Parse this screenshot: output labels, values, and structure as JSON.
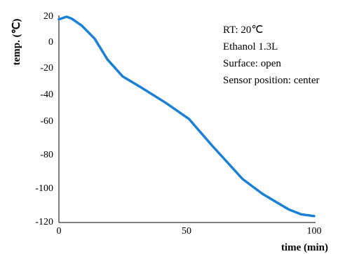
{
  "chart_data": {
    "type": "line",
    "title": "",
    "xlabel": "time (min)",
    "ylabel": "temp. (℃)",
    "xlim": [
      0,
      100
    ],
    "ylim": [
      -120,
      20
    ],
    "xticks": [
      0,
      50,
      100
    ],
    "yticks": [
      20,
      0,
      -20,
      -40,
      -60,
      -80,
      -100,
      -120
    ],
    "grid": false,
    "annotations": [
      "RT: 20℃",
      "Ethanol 1.3L",
      "Surface: open",
      "Sensor position: center"
    ],
    "series": [
      {
        "color": "#1a7fd6",
        "x": [
          0,
          3,
          5,
          9,
          14,
          19,
          25,
          32,
          42,
          51,
          60,
          72,
          80,
          90,
          95,
          100
        ],
        "y": [
          17,
          19,
          17.5,
          12,
          2,
          -14,
          -27,
          -35,
          -47,
          -59,
          -75,
          -95,
          -104,
          -113,
          -116,
          -117
        ]
      }
    ]
  }
}
